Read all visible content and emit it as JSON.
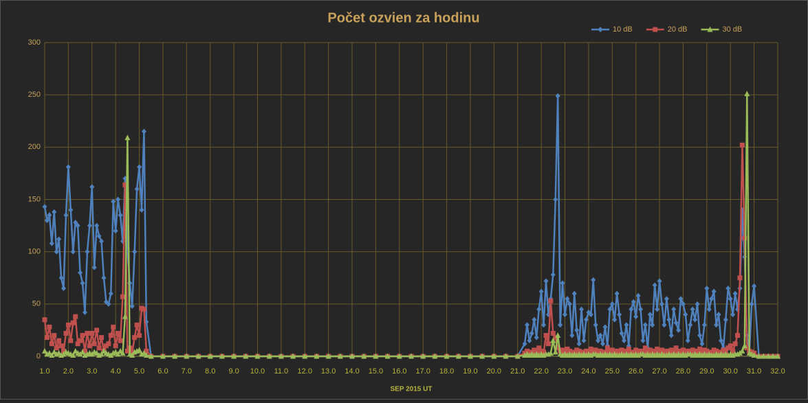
{
  "chart_data": {
    "type": "line",
    "title": "Počet ozvien za hodinu",
    "x_label": "SEP  2015  UT",
    "legend": "top-right",
    "grid": true,
    "xlim": [
      1,
      32
    ],
    "ylim": [
      0,
      300
    ],
    "xticks": [
      {
        "value": 1,
        "label": "1.0"
      },
      {
        "value": 2,
        "label": "2.0"
      },
      {
        "value": 3,
        "label": "3.0"
      },
      {
        "value": 4,
        "label": "4.0"
      },
      {
        "value": 5,
        "label": "5.0"
      },
      {
        "value": 6,
        "label": "6.0"
      },
      {
        "value": 7,
        "label": "7.0"
      },
      {
        "value": 8,
        "label": "8.0"
      },
      {
        "value": 9,
        "label": "9.0"
      },
      {
        "value": 10,
        "label": "10.0"
      },
      {
        "value": 11,
        "label": "11.0"
      },
      {
        "value": 12,
        "label": "12.0"
      },
      {
        "value": 13,
        "label": "13.0"
      },
      {
        "value": 14,
        "label": "14.0"
      },
      {
        "value": 15,
        "label": "15.0"
      },
      {
        "value": 16,
        "label": "16.0"
      },
      {
        "value": 17,
        "label": "17.0"
      },
      {
        "value": 18,
        "label": "18.0"
      },
      {
        "value": 19,
        "label": "19.0"
      },
      {
        "value": 20,
        "label": "20.0"
      },
      {
        "value": 21,
        "label": "21.0"
      },
      {
        "value": 22,
        "label": "22.0"
      },
      {
        "value": 23,
        "label": "23.0"
      },
      {
        "value": 24,
        "label": "24.0"
      },
      {
        "value": 25,
        "label": "25.0"
      },
      {
        "value": 26,
        "label": "26.0"
      },
      {
        "value": 27,
        "label": "27.0"
      },
      {
        "value": 28,
        "label": "28.0"
      },
      {
        "value": 29,
        "label": "29.0"
      },
      {
        "value": 30,
        "label": "30.0"
      },
      {
        "value": 31,
        "label": "31.0"
      },
      {
        "value": 32,
        "label": "32.0"
      }
    ],
    "yticks": [
      0,
      50,
      100,
      150,
      200,
      250,
      300
    ],
    "x": [
      1.0,
      1.1,
      1.2,
      1.3,
      1.4,
      1.5,
      1.6,
      1.7,
      1.8,
      1.9,
      2.0,
      2.1,
      2.2,
      2.3,
      2.4,
      2.5,
      2.6,
      2.7,
      2.8,
      2.9,
      3.0,
      3.1,
      3.2,
      3.3,
      3.4,
      3.5,
      3.6,
      3.7,
      3.8,
      3.9,
      4.0,
      4.1,
      4.2,
      4.3,
      4.4,
      4.5,
      4.6,
      4.7,
      4.8,
      4.9,
      5.0,
      5.1,
      5.2,
      5.3,
      5.5,
      6.0,
      6.5,
      7.0,
      7.5,
      8.0,
      8.5,
      9.0,
      9.5,
      10.0,
      10.5,
      11.0,
      11.5,
      12.0,
      12.5,
      13.0,
      13.5,
      14.0,
      14.5,
      15.0,
      15.5,
      16.0,
      16.5,
      17.0,
      17.5,
      18.0,
      18.5,
      19.0,
      19.5,
      20.0,
      20.5,
      21.0,
      21.3,
      21.4,
      21.5,
      21.6,
      21.7,
      21.8,
      21.9,
      22.0,
      22.1,
      22.2,
      22.3,
      22.4,
      22.5,
      22.6,
      22.7,
      22.8,
      22.9,
      23.0,
      23.1,
      23.2,
      23.3,
      23.4,
      23.5,
      23.6,
      23.7,
      23.8,
      23.9,
      24.0,
      24.1,
      24.2,
      24.3,
      24.4,
      24.5,
      24.6,
      24.7,
      24.8,
      24.9,
      25.0,
      25.1,
      25.2,
      25.3,
      25.4,
      25.5,
      25.6,
      25.7,
      25.8,
      25.9,
      26.0,
      26.1,
      26.2,
      26.3,
      26.4,
      26.5,
      26.6,
      26.7,
      26.8,
      26.9,
      27.0,
      27.1,
      27.2,
      27.3,
      27.4,
      27.5,
      27.6,
      27.7,
      27.8,
      27.9,
      28.0,
      28.1,
      28.2,
      28.3,
      28.4,
      28.5,
      28.6,
      28.7,
      28.8,
      28.9,
      29.0,
      29.1,
      29.2,
      29.3,
      29.4,
      29.5,
      29.6,
      29.7,
      29.8,
      29.9,
      30.0,
      30.1,
      30.2,
      30.3,
      30.4,
      30.5,
      30.6,
      30.7,
      30.8,
      30.9,
      31.0,
      31.2,
      31.4,
      31.6,
      31.8,
      32.0
    ],
    "series": [
      {
        "name": "10 dB",
        "color": "#4f81bd",
        "marker": "diamond",
        "values": [
          143,
          130,
          135,
          108,
          138,
          100,
          112,
          75,
          65,
          135,
          181,
          140,
          100,
          128,
          125,
          80,
          70,
          42,
          100,
          125,
          162,
          85,
          125,
          115,
          110,
          75,
          52,
          50,
          60,
          148,
          120,
          150,
          135,
          110,
          170,
          100,
          70,
          48,
          100,
          160,
          181,
          140,
          215,
          33,
          0,
          0,
          0,
          0,
          0,
          0,
          0,
          0,
          0,
          0,
          0,
          0,
          0,
          0,
          0,
          0,
          0,
          0,
          0,
          0,
          0,
          0,
          0,
          0,
          0,
          0,
          0,
          0,
          0,
          0,
          0,
          0,
          12,
          30,
          15,
          22,
          35,
          18,
          45,
          62,
          30,
          72,
          40,
          55,
          78,
          150,
          249,
          30,
          70,
          40,
          55,
          50,
          20,
          60,
          25,
          12,
          45,
          15,
          35,
          42,
          40,
          73,
          30,
          15,
          20,
          12,
          28,
          10,
          45,
          50,
          35,
          60,
          40,
          22,
          15,
          30,
          10,
          45,
          52,
          38,
          58,
          45,
          15,
          30,
          8,
          40,
          30,
          68,
          45,
          72,
          50,
          30,
          55,
          35,
          20,
          45,
          32,
          25,
          55,
          50,
          40,
          15,
          30,
          45,
          35,
          50,
          20,
          12,
          30,
          65,
          45,
          55,
          62,
          30,
          40,
          15,
          8,
          35,
          65,
          55,
          40,
          60,
          45,
          65,
          140,
          95,
          20,
          5,
          50,
          67,
          0,
          0,
          0,
          0,
          0
        ]
      },
      {
        "name": "20 dB",
        "color": "#c0504d",
        "marker": "square",
        "values": [
          35,
          18,
          28,
          12,
          20,
          8,
          15,
          10,
          5,
          22,
          30,
          15,
          32,
          38,
          12,
          15,
          20,
          5,
          22,
          10,
          22,
          12,
          25,
          8,
          18,
          5,
          10,
          12,
          20,
          28,
          10,
          22,
          15,
          57,
          164,
          5,
          8,
          3,
          18,
          30,
          20,
          46,
          45,
          5,
          0,
          0,
          0,
          0,
          0,
          0,
          0,
          0,
          0,
          0,
          0,
          0,
          0,
          0,
          0,
          0,
          0,
          0,
          0,
          0,
          0,
          0,
          0,
          0,
          0,
          0,
          0,
          0,
          0,
          0,
          0,
          0,
          3,
          5,
          2,
          4,
          6,
          3,
          8,
          5,
          4,
          20,
          12,
          53,
          22,
          18,
          8,
          5,
          6,
          4,
          7,
          5,
          4,
          3,
          6,
          5,
          2,
          4,
          5,
          3,
          7,
          4,
          6,
          3,
          5,
          2,
          4,
          8,
          5,
          6,
          3,
          5,
          4,
          6,
          3,
          5,
          7,
          4,
          3,
          6,
          5,
          4,
          5,
          8,
          4,
          6,
          3,
          5,
          7,
          4,
          6,
          3,
          5,
          4,
          6,
          3,
          8,
          5,
          4,
          6,
          3,
          5,
          4,
          6,
          5,
          3,
          7,
          4,
          6,
          5,
          3,
          4,
          6,
          5,
          4,
          3,
          6,
          5,
          8,
          10,
          5,
          12,
          20,
          75,
          202,
          113,
          8,
          5,
          4,
          3,
          0,
          0,
          0,
          0,
          0
        ]
      },
      {
        "name": "30 dB",
        "color": "#9bbb59",
        "marker": "triangle",
        "values": [
          5,
          2,
          3,
          1,
          4,
          2,
          3,
          1,
          2,
          4,
          3,
          2,
          1,
          5,
          3,
          2,
          4,
          1,
          2,
          3,
          2,
          4,
          3,
          1,
          2,
          5,
          3,
          2,
          1,
          3,
          4,
          2,
          5,
          3,
          38,
          209,
          2,
          1,
          4,
          5,
          6,
          2,
          3,
          1,
          0,
          0,
          0,
          0,
          0,
          0,
          0,
          0,
          0,
          0,
          0,
          0,
          0,
          0,
          0,
          0,
          0,
          0,
          0,
          0,
          0,
          0,
          0,
          0,
          0,
          0,
          0,
          0,
          0,
          0,
          0,
          0,
          1,
          2,
          1,
          2,
          1,
          2,
          1,
          2,
          1,
          2,
          2,
          3,
          15,
          4,
          20,
          2,
          1,
          2,
          1,
          2,
          1,
          2,
          1,
          2,
          1,
          2,
          1,
          2,
          1,
          2,
          2,
          1,
          2,
          1,
          2,
          1,
          2,
          1,
          2,
          1,
          1,
          2,
          1,
          2,
          1,
          2,
          1,
          2,
          1,
          2,
          2,
          1,
          2,
          1,
          2,
          1,
          2,
          1,
          2,
          1,
          1,
          2,
          1,
          2,
          1,
          2,
          1,
          2,
          1,
          2,
          2,
          1,
          2,
          1,
          2,
          1,
          2,
          1,
          2,
          1,
          1,
          2,
          1,
          2,
          1,
          2,
          1,
          2,
          1,
          2,
          2,
          3,
          5,
          10,
          251,
          3,
          2,
          1,
          0,
          0,
          0,
          0,
          0
        ]
      }
    ]
  }
}
